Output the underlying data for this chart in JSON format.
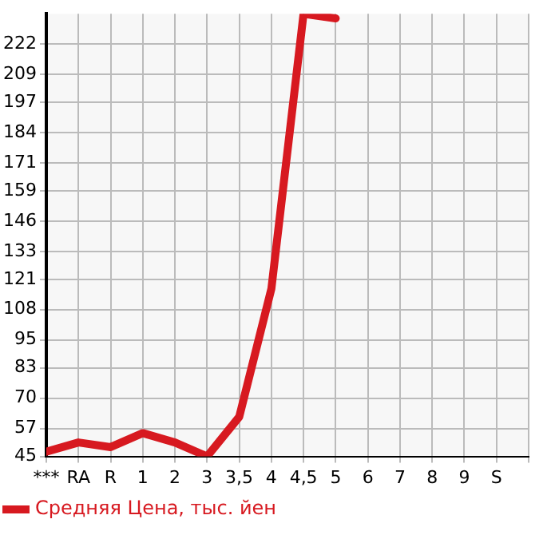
{
  "chart_data": {
    "type": "line",
    "categories": [
      "***",
      "RA",
      "R",
      "1",
      "2",
      "3",
      "3,5",
      "4",
      "4,5",
      "5",
      "6",
      "7",
      "8",
      "9",
      "S"
    ],
    "series": [
      {
        "name": "Средняя Цена, тыс. йен",
        "color": "#d71920",
        "values": [
          47,
          51,
          49,
          55,
          51,
          45,
          62,
          117,
          235,
          233,
          null,
          null,
          null,
          null,
          null
        ]
      }
    ],
    "ylim": [
      45,
      235
    ],
    "yticks": [
      45,
      57,
      70,
      83,
      95,
      108,
      121,
      133,
      146,
      159,
      171,
      184,
      197,
      209,
      222
    ],
    "grid": true,
    "legend": "bottom",
    "marker": "none",
    "line_style": "solid"
  }
}
